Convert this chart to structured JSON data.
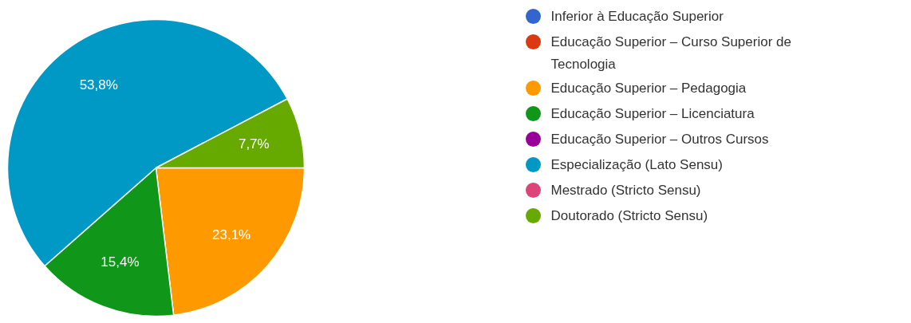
{
  "chart_data": {
    "type": "pie",
    "categories": [
      "Inferior à Educação Superior",
      "Educação Superior – Curso Superior de Tecnologia",
      "Educação Superior – Pedagogia",
      "Educação Superior – Licenciatura",
      "Educação Superior – Outros Cursos",
      "Especialização (Lato Sensu)",
      "Mestrado (Stricto Sensu)",
      "Doutorado (Stricto Sensu)"
    ],
    "values": [
      0,
      0,
      23.1,
      15.4,
      0,
      53.8,
      0,
      7.7
    ],
    "colors": [
      "#3366cc",
      "#dc3912",
      "#ff9900",
      "#109618",
      "#990099",
      "#0099c6",
      "#dd4477",
      "#66aa00"
    ],
    "value_labels": [
      null,
      null,
      "23,1%",
      "15,4%",
      null,
      "53,8%",
      null,
      "7,7%"
    ],
    "legend": "right"
  }
}
